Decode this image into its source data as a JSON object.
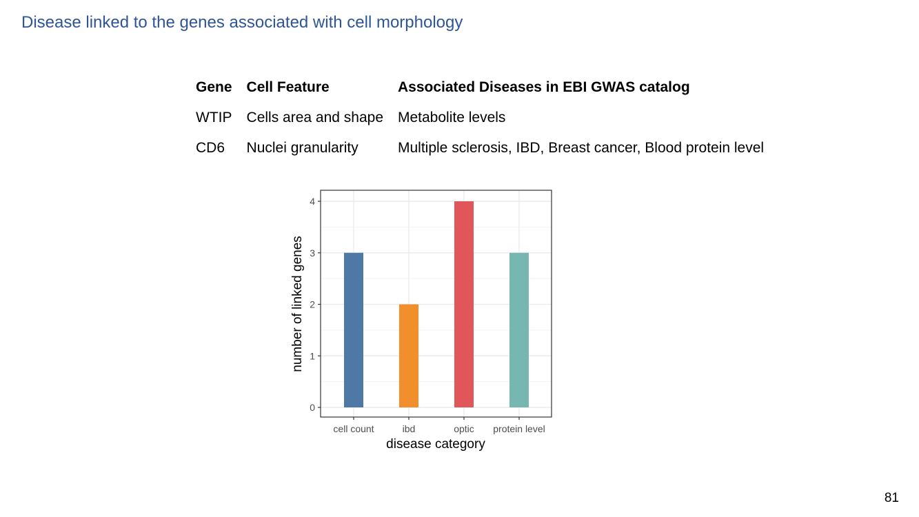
{
  "slide": {
    "title": "Disease linked to the genes associated with cell morphology",
    "page_number": "81"
  },
  "table": {
    "headers": [
      "Gene",
      "Cell Feature",
      "Associated Diseases in EBI GWAS catalog"
    ],
    "rows": [
      [
        "WTIP",
        "Cells area and shape",
        "Metabolite levels"
      ],
      [
        "CD6",
        "Nuclei granularity",
        "Multiple sclerosis, IBD, Breast cancer, Blood protein level"
      ]
    ]
  },
  "chart_data": {
    "type": "bar",
    "categories": [
      "cell count",
      "ibd",
      "optic",
      "protein level"
    ],
    "values": [
      3,
      2,
      4,
      3
    ],
    "colors": [
      "#4e79a7",
      "#f28e2b",
      "#e15759",
      "#76b7b2"
    ],
    "title": "",
    "xlabel": "disease category",
    "ylabel": "number of linked genes",
    "ylim": [
      0,
      4
    ],
    "yticks": [
      0,
      1,
      2,
      3,
      4
    ],
    "grid": true,
    "legend": "none"
  }
}
